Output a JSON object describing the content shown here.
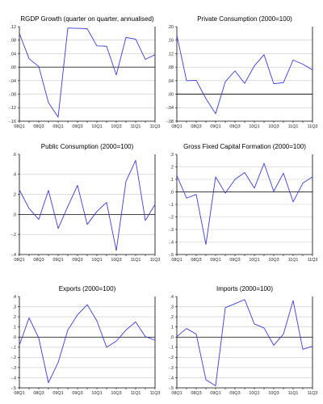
{
  "chart_data": [
    {
      "type": "line",
      "title": "RGDP Growth (quarter on quarter, annualised)",
      "x_tick_labels": [
        "08Q1",
        "08Q3",
        "09Q1",
        "09Q3",
        "10Q1",
        "10Q3",
        "11Q1",
        "11Q3"
      ],
      "y_tick_labels": [
        ".12",
        ".08",
        ".04",
        ".00",
        "-.04",
        "-.08",
        "-.12",
        "-.16"
      ],
      "ylim": [
        -0.16,
        0.12
      ],
      "grid": true,
      "x": [
        "08Q1",
        "08Q2",
        "08Q3",
        "08Q4",
        "09Q1",
        "09Q2",
        "09Q3",
        "09Q4",
        "10Q1",
        "10Q2",
        "10Q3",
        "10Q4",
        "11Q1",
        "11Q2",
        "11Q3"
      ],
      "values": [
        0.1,
        0.025,
        0.002,
        -0.105,
        -0.148,
        0.116,
        0.115,
        0.114,
        0.063,
        0.062,
        -0.023,
        0.088,
        0.083,
        0.023,
        0.037
      ]
    },
    {
      "type": "line",
      "title": "Private Consumption (2000=100)",
      "x_tick_labels": [
        "08Q1",
        "08Q3",
        "09Q1",
        "09Q3",
        "10Q1",
        "10Q3",
        "11Q1",
        "11Q3"
      ],
      "y_tick_labels": [
        ".20",
        ".16",
        ".12",
        ".08",
        ".04",
        ".00",
        "-.04",
        "-.08"
      ],
      "ylim": [
        -0.08,
        0.2
      ],
      "grid": true,
      "x": [
        "08Q1",
        "08Q2",
        "08Q3",
        "08Q4",
        "09Q1",
        "09Q2",
        "09Q3",
        "09Q4",
        "10Q1",
        "10Q2",
        "10Q3",
        "10Q4",
        "11Q1",
        "11Q2",
        "11Q3"
      ],
      "values": [
        0.175,
        0.04,
        0.041,
        -0.013,
        -0.058,
        0.037,
        0.069,
        0.032,
        0.084,
        0.117,
        0.031,
        0.034,
        0.101,
        0.089,
        0.072
      ]
    },
    {
      "type": "line",
      "title": "Public Consumption (2000=100)",
      "x_tick_labels": [
        "08Q1",
        "08Q3",
        "09Q1",
        "09Q3",
        "10Q1",
        "10Q3",
        "11Q1",
        "11Q3"
      ],
      "y_tick_labels": [
        ".6",
        ".4",
        ".2",
        ".0",
        "-.2",
        "-.4"
      ],
      "ylim": [
        -0.4,
        0.6
      ],
      "grid": true,
      "x": [
        "08Q1",
        "08Q2",
        "08Q3",
        "08Q4",
        "09Q1",
        "09Q2",
        "09Q3",
        "09Q4",
        "10Q1",
        "10Q2",
        "10Q3",
        "10Q4",
        "11Q1",
        "11Q2",
        "11Q3"
      ],
      "values": [
        0.245,
        0.06,
        -0.05,
        0.24,
        -0.14,
        0.08,
        0.29,
        -0.1,
        0.03,
        0.12,
        -0.36,
        0.33,
        0.54,
        -0.06,
        0.1
      ]
    },
    {
      "type": "line",
      "title": "Gross Fixed Capital Formation (2000=100)",
      "x_tick_labels": [
        "08Q1",
        "08Q3",
        "09Q1",
        "09Q3",
        "10Q1",
        "10Q3",
        "11Q1",
        "11Q3"
      ],
      "y_tick_labels": [
        ".3",
        ".2",
        ".1",
        ".0",
        "-.1",
        "-.2",
        "-.3",
        "-.4",
        "-.5"
      ],
      "ylim": [
        -0.5,
        0.3
      ],
      "grid": true,
      "x": [
        "08Q1",
        "08Q2",
        "08Q3",
        "08Q4",
        "09Q1",
        "09Q2",
        "09Q3",
        "09Q4",
        "10Q1",
        "10Q2",
        "10Q3",
        "10Q4",
        "11Q1",
        "11Q2",
        "11Q3"
      ],
      "values": [
        0.13,
        -0.05,
        -0.02,
        -0.42,
        0.12,
        -0.01,
        0.1,
        0.155,
        0.03,
        0.228,
        0.005,
        0.15,
        -0.08,
        0.07,
        0.12
      ]
    },
    {
      "type": "line",
      "title": "Exports (2000=100)",
      "x_tick_labels": [
        "08Q1",
        "08Q3",
        "09Q1",
        "09Q3",
        "10Q1",
        "10Q3",
        "11Q1",
        "11Q3"
      ],
      "y_tick_labels": [
        ".4",
        ".3",
        ".2",
        ".1",
        ".0",
        "-.1",
        "-.2",
        "-.3",
        "-.4",
        "-.5"
      ],
      "ylim": [
        -0.5,
        0.4
      ],
      "grid": true,
      "x": [
        "08Q1",
        "08Q2",
        "08Q3",
        "08Q4",
        "09Q1",
        "09Q2",
        "09Q3",
        "09Q4",
        "10Q1",
        "10Q2",
        "10Q3",
        "10Q4",
        "11Q1",
        "11Q2",
        "11Q3"
      ],
      "values": [
        -0.08,
        0.19,
        -0.01,
        -0.45,
        -0.25,
        0.07,
        0.22,
        0.32,
        0.16,
        -0.1,
        -0.04,
        0.07,
        0.15,
        0.005,
        -0.03
      ]
    },
    {
      "type": "line",
      "title": "Imports (2000=100)",
      "x_tick_labels": [
        "08Q1",
        "08Q3",
        "09Q1",
        "09Q3",
        "10Q1",
        "10Q3",
        "11Q1",
        "11Q3"
      ],
      "y_tick_labels": [
        ".4",
        ".3",
        ".2",
        ".1",
        ".0",
        "-.1",
        "-.2",
        "-.3",
        "-.4",
        "-.5"
      ],
      "ylim": [
        -0.5,
        0.4
      ],
      "grid": true,
      "x": [
        "08Q1",
        "08Q2",
        "08Q3",
        "08Q4",
        "09Q1",
        "09Q2",
        "09Q3",
        "09Q4",
        "10Q1",
        "10Q2",
        "10Q3",
        "10Q4",
        "11Q1",
        "11Q2",
        "11Q3"
      ],
      "values": [
        0.005,
        0.085,
        0.03,
        -0.42,
        -0.48,
        0.29,
        0.33,
        0.37,
        0.13,
        0.09,
        -0.08,
        0.03,
        0.36,
        -0.12,
        -0.09
      ]
    }
  ],
  "colors": {
    "series": "#3b3bd4",
    "grid": "#c8c8c8",
    "zero_line": "#000000"
  }
}
